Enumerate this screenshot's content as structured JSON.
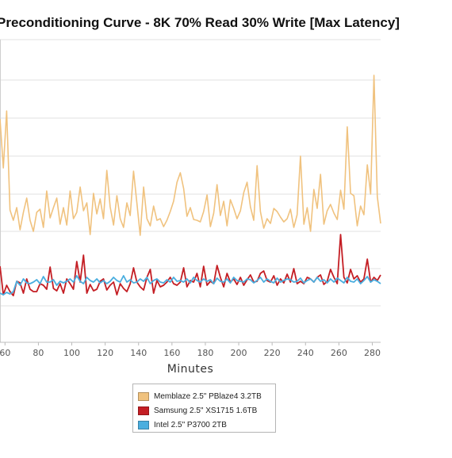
{
  "chart_data": {
    "type": "line",
    "title": "Preconditioning Curve - 8K 70% Read 30% Write [Max Latency]",
    "xlabel": "Minutes",
    "ylabel": "",
    "x_tick_labels": [
      "60",
      "80",
      "100",
      "120",
      "140",
      "160",
      "180",
      "200",
      "220",
      "240",
      "260",
      "280"
    ],
    "xlim": [
      57,
      285
    ],
    "grid": true,
    "legend_position": "bottom",
    "series": [
      {
        "name": "Memblaze 2.5\" PBlaze4 3.2TB",
        "color": "#f0c27e",
        "x": [
          57,
          59,
          61,
          63,
          65,
          67,
          69,
          71,
          73,
          75,
          77,
          79,
          81,
          83,
          85,
          87,
          89,
          91,
          93,
          95,
          97,
          99,
          101,
          103,
          105,
          107,
          109,
          111,
          113,
          115,
          117,
          119,
          121,
          123,
          125,
          127,
          129,
          131,
          133,
          135,
          137,
          139,
          141,
          143,
          145,
          147,
          149,
          151,
          153,
          155,
          157,
          159,
          161,
          163,
          165,
          167,
          169,
          171,
          173,
          175,
          177,
          179,
          181,
          183,
          185,
          187,
          189,
          191,
          193,
          195,
          197,
          199,
          201,
          203,
          205,
          207,
          209,
          211,
          213,
          215,
          217,
          219,
          221,
          223,
          225,
          227,
          229,
          231,
          233,
          235,
          237,
          239,
          241,
          243,
          245,
          247,
          249,
          251,
          253,
          255,
          257,
          259,
          261,
          263,
          265,
          267,
          269,
          271,
          273,
          275,
          277,
          279,
          281,
          283,
          285
        ],
        "y": [
          150,
          212,
          140,
          265,
          278,
          262,
          290,
          268,
          250,
          278,
          292,
          268,
          264,
          287,
          241,
          275,
          262,
          250,
          283,
          262,
          284,
          241,
          276,
          268,
          236,
          266,
          256,
          296,
          244,
          270,
          251,
          276,
          215,
          261,
          284,
          247,
          276,
          287,
          256,
          272,
          216,
          256,
          297,
          236,
          276,
          285,
          260,
          278,
          276,
          286,
          278,
          267,
          254,
          230,
          218,
          238,
          273,
          262,
          277,
          278,
          280,
          267,
          246,
          286,
          269,
          233,
          272,
          254,
          285,
          252,
          263,
          276,
          266,
          243,
          230,
          261,
          278,
          209,
          267,
          288,
          276,
          282,
          263,
          267,
          274,
          280,
          276,
          264,
          287,
          271,
          197,
          283,
          262,
          292,
          239,
          263,
          220,
          283,
          266,
          258,
          269,
          277,
          240,
          264,
          160,
          244,
          247,
          285,
          260,
          271,
          208,
          245,
          95,
          248,
          282
        ]
      },
      {
        "name": "Samsung 2.5\" XS1715 1.6TB",
        "color": "#c41e24",
        "x": [
          57,
          59,
          61,
          63,
          65,
          67,
          69,
          71,
          73,
          75,
          77,
          79,
          81,
          83,
          85,
          87,
          89,
          91,
          93,
          95,
          97,
          99,
          101,
          103,
          105,
          107,
          109,
          111,
          113,
          115,
          117,
          119,
          121,
          123,
          125,
          127,
          129,
          131,
          133,
          135,
          137,
          139,
          141,
          143,
          145,
          147,
          149,
          151,
          153,
          155,
          157,
          159,
          161,
          163,
          165,
          167,
          169,
          171,
          173,
          175,
          177,
          179,
          181,
          183,
          185,
          187,
          189,
          191,
          193,
          195,
          197,
          199,
          201,
          203,
          205,
          207,
          209,
          211,
          213,
          215,
          217,
          219,
          221,
          223,
          225,
          227,
          229,
          231,
          233,
          235,
          237,
          239,
          241,
          243,
          245,
          247,
          249,
          251,
          253,
          255,
          257,
          259,
          261,
          263,
          265,
          267,
          269,
          271,
          273,
          275,
          277,
          279,
          281,
          283,
          285
        ],
        "y": [
          336,
          372,
          360,
          368,
          373,
          355,
          357,
          370,
          352,
          365,
          368,
          368,
          358,
          360,
          365,
          337,
          364,
          367,
          358,
          370,
          352,
          358,
          365,
          330,
          356,
          322,
          370,
          359,
          367,
          365,
          355,
          352,
          366,
          360,
          356,
          372,
          358,
          364,
          368,
          358,
          338,
          356,
          362,
          366,
          350,
          340,
          370,
          354,
          362,
          360,
          356,
          350,
          358,
          360,
          356,
          338,
          362,
          354,
          356,
          345,
          362,
          336,
          360,
          355,
          358,
          335,
          350,
          362,
          345,
          356,
          352,
          359,
          350,
          360,
          353,
          347,
          356,
          355,
          345,
          342,
          354,
          356,
          348,
          360,
          352,
          357,
          346,
          356,
          339,
          358,
          355,
          358,
          350,
          352,
          356,
          350,
          347,
          359,
          355,
          340,
          350,
          358,
          296,
          350,
          357,
          340,
          352,
          348,
          356,
          352,
          327,
          356,
          350,
          354,
          347
        ]
      },
      {
        "name": "Intel 2.5\" P3700 2TB",
        "color": "#4aaedf",
        "x": [
          57,
          59,
          61,
          63,
          65,
          67,
          69,
          71,
          73,
          75,
          77,
          79,
          81,
          83,
          85,
          87,
          89,
          91,
          93,
          95,
          97,
          99,
          101,
          103,
          105,
          107,
          109,
          111,
          113,
          115,
          117,
          119,
          121,
          123,
          125,
          127,
          129,
          131,
          133,
          135,
          137,
          139,
          141,
          143,
          145,
          147,
          149,
          151,
          153,
          155,
          157,
          159,
          161,
          163,
          165,
          167,
          169,
          171,
          173,
          175,
          177,
          179,
          181,
          183,
          185,
          187,
          189,
          191,
          193,
          195,
          197,
          199,
          201,
          203,
          205,
          207,
          209,
          211,
          213,
          215,
          217,
          219,
          221,
          223,
          225,
          227,
          229,
          231,
          233,
          235,
          237,
          239,
          241,
          243,
          245,
          247,
          249,
          251,
          253,
          255,
          257,
          259,
          261,
          263,
          265,
          267,
          269,
          271,
          273,
          275,
          277,
          279,
          281,
          283,
          285
        ],
        "y": [
          370,
          372,
          369,
          371,
          368,
          355,
          360,
          352,
          357,
          358,
          356,
          353,
          358,
          349,
          356,
          356,
          353,
          360,
          355,
          357,
          355,
          352,
          356,
          348,
          355,
          358,
          350,
          354,
          356,
          352,
          357,
          354,
          358,
          355,
          350,
          354,
          356,
          348,
          356,
          353,
          357,
          356,
          352,
          355,
          350,
          358,
          354,
          352,
          356,
          357,
          353,
          356,
          350,
          355,
          354,
          356,
          352,
          357,
          350,
          354,
          356,
          352,
          355,
          353,
          358,
          351,
          355,
          356,
          352,
          357,
          350,
          354,
          355,
          356,
          352,
          353,
          357,
          354,
          350,
          356,
          352,
          355,
          357,
          351,
          356,
          354,
          352,
          353,
          356,
          355,
          351,
          357,
          354,
          352,
          356,
          350,
          355,
          353,
          357,
          352,
          356,
          351,
          354,
          357,
          350,
          355,
          356,
          352,
          358,
          354,
          349,
          356,
          353,
          355,
          358
        ]
      }
    ]
  }
}
